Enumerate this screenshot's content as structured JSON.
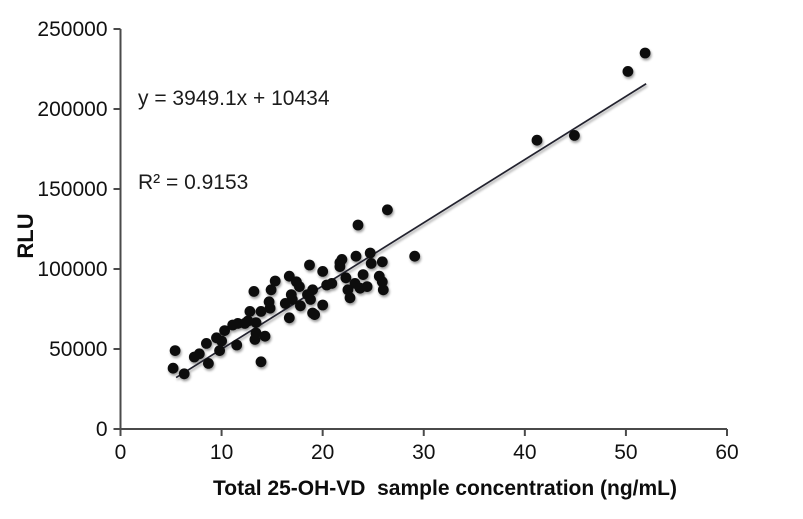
{
  "chart_data": {
    "type": "scatter",
    "title": "",
    "xlabel": "Total 25-OH-VD  sample concentration (ng/mL)",
    "ylabel": "RLU",
    "xlim": [
      0,
      60
    ],
    "ylim": [
      0,
      250000
    ],
    "xticks": [
      0,
      10,
      20,
      30,
      40,
      50,
      60
    ],
    "yticks": [
      0,
      50000,
      100000,
      150000,
      200000,
      250000
    ],
    "grid": false,
    "legend": "none",
    "annotation": {
      "equation": "y = 3949.1x + 10434",
      "r_squared": "R² = 0.9153"
    },
    "trendline": {
      "slope": 3949.1,
      "intercept": 10434,
      "x_start": 5.5,
      "x_end": 52.0,
      "color": "#23232e"
    },
    "colors": {
      "point": "#0a0a0a",
      "axis": "#4a4a4a",
      "text": "#111111"
    },
    "points": [
      [
        5.4,
        49000
      ],
      [
        5.2,
        38000
      ],
      [
        6.3,
        34500
      ],
      [
        7.3,
        45000
      ],
      [
        7.8,
        47000
      ],
      [
        8.5,
        53500
      ],
      [
        8.7,
        41000
      ],
      [
        9.5,
        57000
      ],
      [
        9.8,
        49000
      ],
      [
        10.0,
        55000
      ],
      [
        10.3,
        61500
      ],
      [
        11.1,
        65000
      ],
      [
        11.5,
        52500
      ],
      [
        11.6,
        66000
      ],
      [
        12.3,
        66000
      ],
      [
        12.6,
        67500
      ],
      [
        12.8,
        73500
      ],
      [
        13.2,
        86000
      ],
      [
        13.3,
        56000
      ],
      [
        13.4,
        60000
      ],
      [
        13.4,
        66500
      ],
      [
        13.9,
        73500
      ],
      [
        13.9,
        42000
      ],
      [
        14.3,
        58000
      ],
      [
        14.7,
        79500
      ],
      [
        14.8,
        75500
      ],
      [
        14.9,
        87000
      ],
      [
        15.3,
        92500
      ],
      [
        16.3,
        78500
      ],
      [
        16.7,
        69500
      ],
      [
        16.7,
        95500
      ],
      [
        16.9,
        84000
      ],
      [
        17.0,
        81000
      ],
      [
        17.4,
        92000
      ],
      [
        17.7,
        89000
      ],
      [
        17.8,
        77000
      ],
      [
        18.5,
        84000
      ],
      [
        18.7,
        102500
      ],
      [
        18.8,
        81000
      ],
      [
        19.0,
        87000
      ],
      [
        19.0,
        72500
      ],
      [
        19.2,
        71500
      ],
      [
        20.0,
        98500
      ],
      [
        20.0,
        77500
      ],
      [
        20.4,
        90000
      ],
      [
        20.9,
        91000
      ],
      [
        21.7,
        104000
      ],
      [
        21.7,
        101500
      ],
      [
        21.9,
        106000
      ],
      [
        22.3,
        94500
      ],
      [
        22.5,
        87000
      ],
      [
        22.7,
        82000
      ],
      [
        23.2,
        91000
      ],
      [
        23.3,
        108000
      ],
      [
        23.5,
        127500
      ],
      [
        23.7,
        88000
      ],
      [
        24.0,
        96500
      ],
      [
        24.4,
        89000
      ],
      [
        24.7,
        110000
      ],
      [
        24.8,
        103500
      ],
      [
        25.6,
        95500
      ],
      [
        25.9,
        104500
      ],
      [
        25.9,
        92000
      ],
      [
        26.0,
        87000
      ],
      [
        26.4,
        137000
      ],
      [
        29.1,
        108000
      ],
      [
        41.2,
        180500
      ],
      [
        44.9,
        183500
      ],
      [
        50.2,
        223500
      ],
      [
        51.9,
        235000
      ]
    ]
  }
}
